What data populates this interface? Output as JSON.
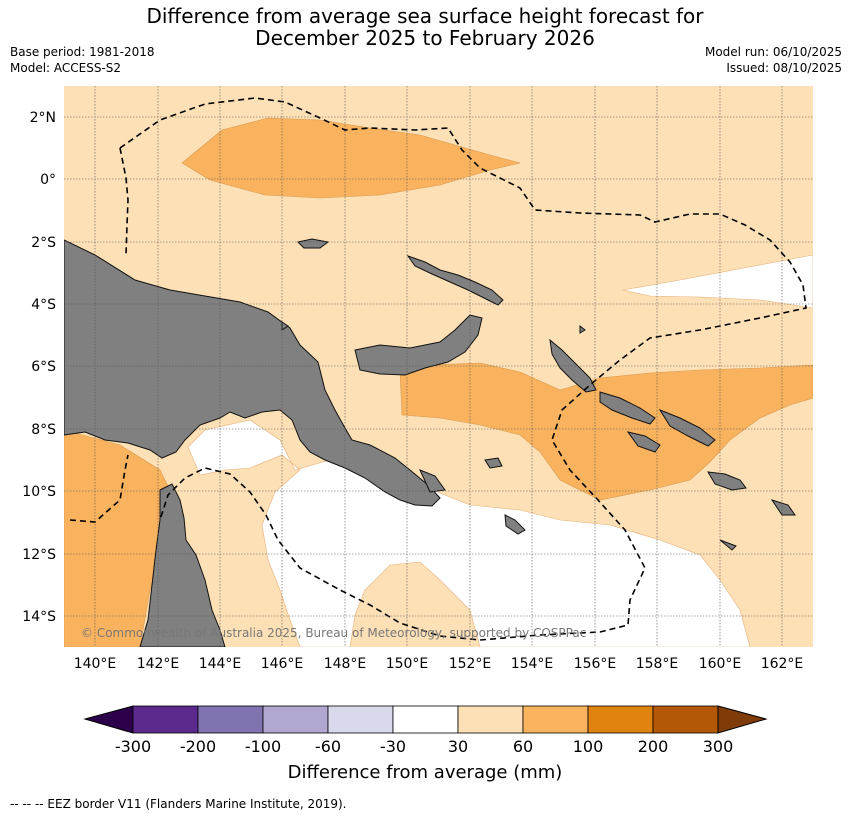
{
  "title": {
    "line1": "Difference from average sea surface height forecast for",
    "line2": "December 2025 to February 2026"
  },
  "meta": {
    "base_period": "Base period: 1981-2018",
    "model": "Model: ACCESS-S2",
    "model_run": "Model run: 06/10/2025",
    "issued": "Issued: 08/10/2025"
  },
  "map": {
    "lon_range": [
      139,
      163
    ],
    "lat_range": [
      -15,
      3
    ],
    "lon_ticks": [
      "140°E",
      "142°E",
      "144°E",
      "146°E",
      "148°E",
      "150°E",
      "152°E",
      "154°E",
      "156°E",
      "158°E",
      "160°E",
      "162°E"
    ],
    "lat_ticks": [
      "2°N",
      "0°",
      "2°S",
      "4°S",
      "6°S",
      "8°S",
      "10°S",
      "12°S",
      "14°S"
    ],
    "copyright": "© Commonwealth of Australia 2025, Bureau of Meteorology, supported by COSPPac",
    "colors": {
      "land": "#808080",
      "band_30_60": "#fde0b5",
      "band_60_100": "#f9b35f",
      "neutral": "#ffffff",
      "eez_line": "#000000"
    }
  },
  "colorbar": {
    "label": "Difference from average (mm)",
    "ticks": [
      "-300",
      "-200",
      "-100",
      "-60",
      "-30",
      "30",
      "60",
      "100",
      "200",
      "300"
    ],
    "colors": [
      "#5b2a8c",
      "#8173af",
      "#b1a7d1",
      "#d8daeb",
      "#ffffff",
      "#fde0b5",
      "#f9b35f",
      "#e0830f",
      "#b35806"
    ],
    "extend_low_color": "#2d004b",
    "extend_high_color": "#7f3b08"
  },
  "legend": {
    "eez_text": "--  --  -- EEZ border V11 (Flanders Marine Institute, 2019)."
  }
}
